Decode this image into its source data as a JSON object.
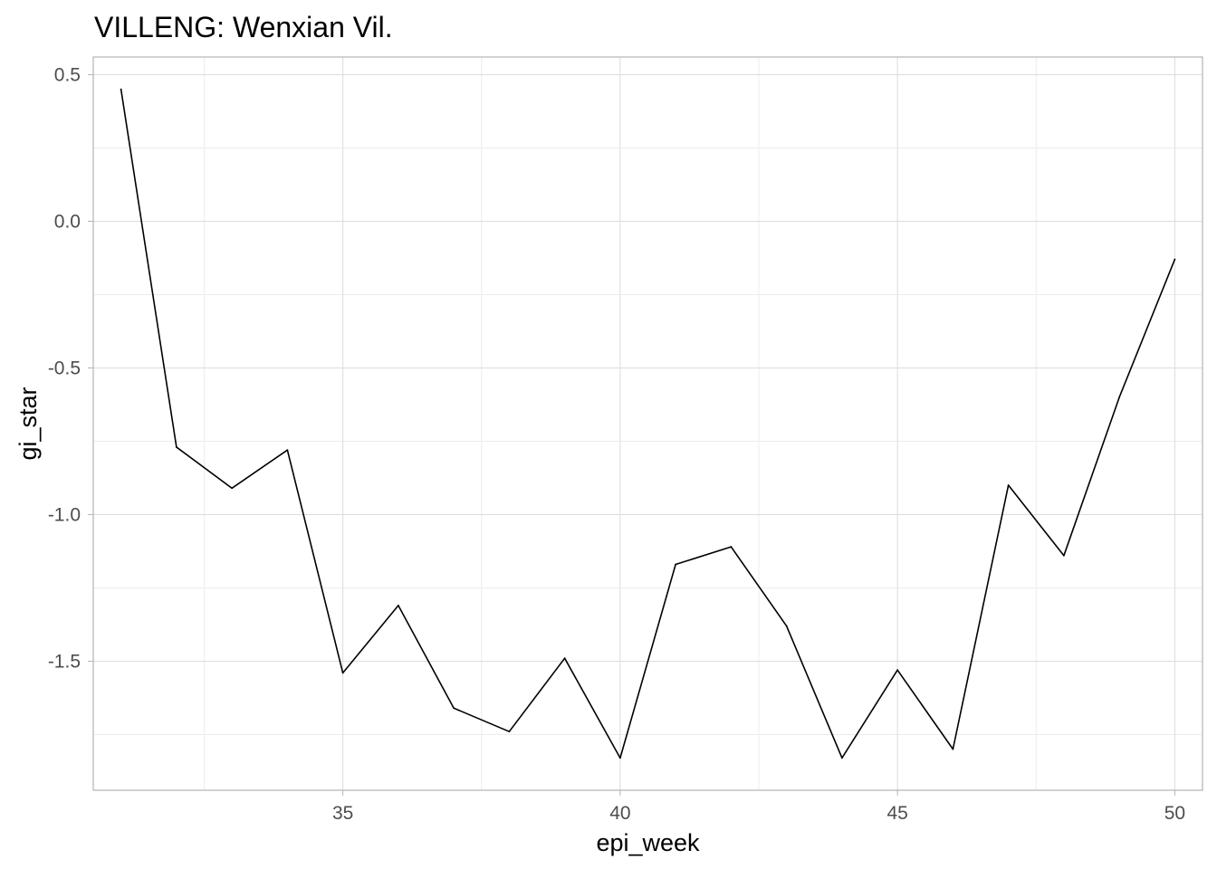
{
  "chart_data": {
    "type": "line",
    "title": "VILLENG: Wenxian Vil.",
    "xlabel": "epi_week",
    "ylabel": "gi_star",
    "xlim": [
      30.5,
      50.5
    ],
    "ylim": [
      -1.94,
      0.56
    ],
    "x_ticks": [
      35,
      40,
      45,
      50
    ],
    "x_tick_labels": [
      "35",
      "40",
      "45",
      "50"
    ],
    "y_ticks": [
      0.5,
      0.0,
      -0.5,
      -1.0,
      -1.5
    ],
    "y_tick_labels": [
      "0.5",
      "0.0",
      "-0.5",
      "-1.0",
      "-1.5"
    ],
    "grid": true,
    "series": [
      {
        "color": "#000000",
        "x": [
          31,
          32,
          33,
          34,
          35,
          36,
          37,
          38,
          39,
          40,
          41,
          42,
          43,
          44,
          45,
          46,
          47,
          48,
          49,
          50
        ],
        "values": [
          0.45,
          -0.77,
          -0.91,
          -0.78,
          -1.54,
          -1.31,
          -1.66,
          -1.74,
          -1.49,
          -1.83,
          -1.17,
          -1.11,
          -1.38,
          -1.83,
          -1.53,
          -1.8,
          -0.9,
          -1.14,
          -0.6,
          -0.13
        ]
      }
    ]
  }
}
